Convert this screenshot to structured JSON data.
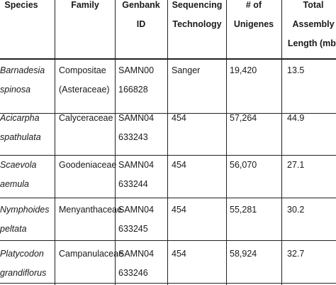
{
  "table": {
    "headers": [
      [
        "Species"
      ],
      [
        "Family"
      ],
      [
        "Genbank",
        "ID"
      ],
      [
        "Sequencing",
        "Technology"
      ],
      [
        "# of",
        "Unigenes"
      ],
      [
        "Total",
        "Assembly",
        "Length (mb)"
      ]
    ],
    "rows": [
      {
        "species": [
          "Barnadesia",
          "spinosa"
        ],
        "family": [
          "Compositae",
          "(Asteraceae)"
        ],
        "id": [
          "SAMN00",
          "166828"
        ],
        "tech": "Sanger",
        "unigenes": "19,420",
        "length": "13.5"
      },
      {
        "species": [
          "Acicarpha",
          "spathulata"
        ],
        "family": [
          "Calyceraceae"
        ],
        "id": [
          "SAMN04",
          "633243"
        ],
        "tech": "454",
        "unigenes": "57,264",
        "length": "44.9"
      },
      {
        "species": [
          "Scaevola",
          "aemula"
        ],
        "family": [
          "Goodeniaceae"
        ],
        "id": [
          "SAMN04",
          "633244"
        ],
        "tech": "454",
        "unigenes": "56,070",
        "length": "27.1"
      },
      {
        "species": [
          "Nymphoides",
          "peltata"
        ],
        "family": [
          "Menyanthaceae"
        ],
        "id": [
          "SAMN04",
          "633245"
        ],
        "tech": "454",
        "unigenes": "55,281",
        "length": "30.2"
      },
      {
        "species": [
          "Platycodon",
          "grandiflorus"
        ],
        "family": [
          "Campanulaceae"
        ],
        "id": [
          "SAMN04",
          "633246"
        ],
        "tech": "454",
        "unigenes": "58,924",
        "length": "32.7"
      }
    ]
  }
}
